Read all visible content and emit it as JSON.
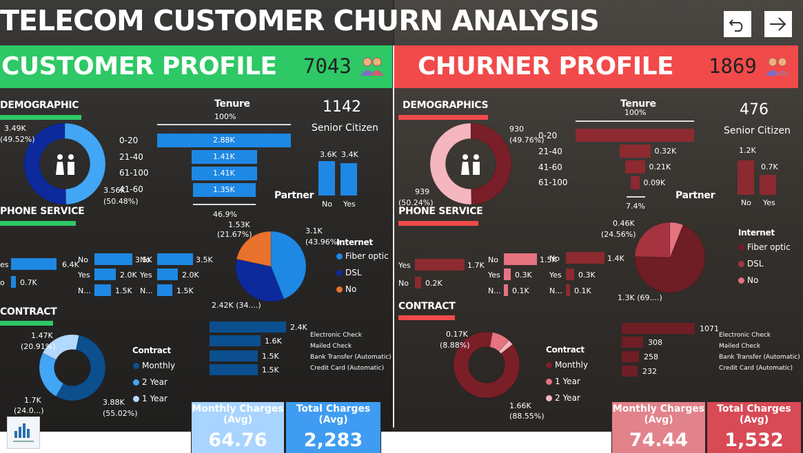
{
  "title": "TELECOM CUSTOMER CHURN ANALYSIS",
  "nav": {
    "back_icon": "undo-arrow-icon",
    "next_icon": "right-arrow-icon"
  },
  "colors": {
    "green": "#2ec866",
    "red": "#f24a4a",
    "blue_primary": "#1e88e5",
    "blue_dark": "#0d2a9c",
    "maroon": "#8c2a30",
    "pink_light": "#f4b6bf"
  },
  "customer": {
    "band_title": "CUSTOMER PROFILE",
    "count": "7043",
    "demographic_title": "DEMOGRAPHIC",
    "phone_title": "PHONE SERVICE",
    "contract_title": "CONTRACT",
    "gender_labels": {
      "a": "3.49K",
      "a_pct": "(49.52%)",
      "b": "3.56K",
      "b_pct": "(50.48%)"
    },
    "tenure": {
      "title": "Tenure",
      "top_pct": "100%",
      "bottom_pct": "46.9%",
      "ranges": [
        "0-20",
        "21-40",
        "61-100",
        "41-60"
      ],
      "values": [
        "2.88K",
        "1.41K",
        "1.41K",
        "1.35K"
      ],
      "fractions": [
        1.0,
        0.49,
        0.49,
        0.469
      ]
    },
    "senior": {
      "value": "1142",
      "label": "Senior Citizen"
    },
    "partner": {
      "title": "Partner",
      "no_value": "3.6K",
      "yes_value": "3.4K",
      "no_label": "No",
      "yes_label": "Yes",
      "fractions": [
        1.0,
        0.94
      ]
    },
    "phone": {
      "g1": {
        "labels": [
          "es",
          "o"
        ],
        "values": [
          "6.4K",
          "0.7K"
        ],
        "fractions": [
          1.0,
          0.11
        ]
      },
      "g2": {
        "labels": [
          "No",
          "Yes",
          "N..."
        ],
        "values": [
          "3.5K",
          "2.0K",
          "1.5K"
        ],
        "fractions": [
          1.0,
          0.57,
          0.43
        ]
      },
      "g3": {
        "labels": [
          "No",
          "Yes",
          "N..."
        ],
        "values": [
          "3.5K",
          "2.0K",
          "1.5K"
        ],
        "fractions": [
          1.0,
          0.57,
          0.43
        ]
      }
    },
    "internet": {
      "title": "Internet",
      "items": [
        "Fiber optic",
        "DSL",
        "No"
      ],
      "labels": {
        "a": "3.1K",
        "a_pct": "(43.96%)",
        "b": "1.53K",
        "b_pct": "(21.67%)",
        "c": "2.42K (34....)"
      },
      "shares": [
        43.96,
        34.37,
        21.67
      ]
    },
    "contract": {
      "title": "Contract",
      "items": [
        "Monthly",
        "2 Year",
        "1 Year"
      ],
      "labels": {
        "a": "1.47K",
        "a_pct": "(20.91%)",
        "b": "1.7K",
        "b_pct": "(24.0...)",
        "c": "3.88K",
        "c_pct": "(55.02%)"
      },
      "shares": [
        55.02,
        24.07,
        20.91
      ]
    },
    "payment": {
      "methods": [
        "Electronic Check",
        "Mailed Check",
        "Bank Transfer (Automatic)",
        "Credit Card (Automatic)"
      ],
      "values": [
        "2.4K",
        "1.6K",
        "1.5K",
        "1.5K"
      ],
      "fractions": [
        1.0,
        0.67,
        0.63,
        0.63
      ]
    },
    "monthly_charges": {
      "title": "Monthly Charges (Avg)",
      "value": "64.76"
    },
    "total_charges": {
      "title": "Total Charges (Avg)",
      "value": "2,283"
    }
  },
  "churner": {
    "band_title": "CHURNER PROFILE",
    "count": "1869",
    "demographic_title": "DEMOGRAPHICS",
    "phone_title": "PHONE SERVICE",
    "contract_title": "CONTRACT",
    "gender_labels": {
      "a": "930",
      "a_pct": "(49.76%)",
      "b": "939",
      "b_pct": "(50.24%)"
    },
    "tenure": {
      "title": "Tenure",
      "top_pct": "100%",
      "bottom_pct": "7.4%",
      "ranges": [
        "0-20",
        "21-40",
        "41-60",
        "61-100"
      ],
      "values": [
        "",
        "0.32K",
        "0.21K",
        "0.09K"
      ],
      "fractions": [
        1.0,
        0.26,
        0.17,
        0.074
      ]
    },
    "senior": {
      "value": "476",
      "label": "Senior Citizen"
    },
    "partner": {
      "title": "Partner",
      "no_value": "1.2K",
      "yes_value": "0.7K",
      "no_label": "No",
      "yes_label": "Yes",
      "fractions": [
        1.0,
        0.58
      ]
    },
    "phone": {
      "g1": {
        "labels": [
          "Yes",
          "No"
        ],
        "values": [
          "1.7K",
          "0.2K"
        ],
        "fractions": [
          1.0,
          0.12
        ]
      },
      "g2": {
        "labels": [
          "No",
          "Yes",
          "N..."
        ],
        "values": [
          "1.5K",
          "0.3K",
          "0.1K"
        ],
        "fractions": [
          1.0,
          0.2,
          0.07
        ]
      },
      "g3": {
        "labels": [
          "No",
          "Yes",
          "N..."
        ],
        "values": [
          "1.4K",
          "0.3K",
          "0.1K"
        ],
        "fractions": [
          1.0,
          0.21,
          0.07
        ]
      }
    },
    "internet": {
      "title": "Internet",
      "items": [
        "Fiber optic",
        "DSL",
        "No"
      ],
      "labels": {
        "a": "0.46K",
        "a_pct": "(24.56%)",
        "b": "1.3K (69....)"
      },
      "shares": [
        69.4,
        24.56,
        6.04
      ]
    },
    "contract": {
      "title": "Contract",
      "items": [
        "Monthly",
        "1 Year",
        "2 Year"
      ],
      "labels": {
        "a": "0.17K",
        "a_pct": "(8.88%)",
        "b": "1.66K",
        "b_pct": "(88.55%)"
      },
      "shares": [
        88.55,
        8.88,
        2.57
      ]
    },
    "payment": {
      "methods": [
        "Electronic Check",
        "Mailed Check",
        "Bank Transfer (Automatic)",
        "Credit Card (Automatic)"
      ],
      "values": [
        "1071",
        "308",
        "258",
        "232"
      ],
      "fractions": [
        1.0,
        0.29,
        0.24,
        0.22
      ]
    },
    "monthly_charges": {
      "title": "Monthly Charges (Avg)",
      "value": "74.44"
    },
    "total_charges": {
      "title": "Total Charges (Avg)",
      "value": "1,532"
    }
  }
}
